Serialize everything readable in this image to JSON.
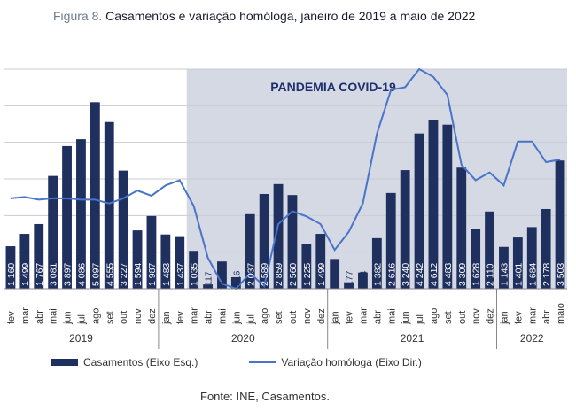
{
  "title": {
    "figure_label": "Figura 8.",
    "text": "Casamentos e variação homóloga, janeiro de 2019 a maio de 2022"
  },
  "colors": {
    "bars": "#1f2f5e",
    "line": "#4a74c9",
    "shade": "#d4d9e3",
    "annotation": "#1f2f6e"
  },
  "chart_data": {
    "type": "bar",
    "annotation": "PANDEMIA COVID-19",
    "categories": [
      "fev",
      "mar",
      "abr",
      "mai",
      "jun",
      "jul",
      "ago",
      "set",
      "out",
      "nov",
      "dez",
      "jan",
      "fev",
      "mar",
      "abr",
      "mai",
      "jun",
      "jul",
      "ago",
      "set",
      "out",
      "nov",
      "dez",
      "jan",
      "fev",
      "mar",
      "abr",
      "mai",
      "jun",
      "jul",
      "ago",
      "set",
      "out",
      "nov",
      "dez",
      "jan",
      "fev",
      "mar",
      "abr",
      "maio"
    ],
    "years": [
      {
        "label": "2019",
        "start": 0,
        "end": 10
      },
      {
        "label": "2020",
        "start": 11,
        "end": 22
      },
      {
        "label": "2021",
        "start": 23,
        "end": 34
      },
      {
        "label": "2022",
        "start": 35,
        "end": 39
      }
    ],
    "series": [
      {
        "name": "Casamentos (Eixo Esq.)",
        "type": "bar",
        "values": [
          1160,
          1499,
          1767,
          3081,
          3897,
          4086,
          5097,
          4555,
          3227,
          1594,
          1987,
          1483,
          1437,
          1035,
          117,
          745,
          316,
          2037,
          2589,
          2859,
          2560,
          1225,
          1499,
          814,
          177,
          444,
          1382,
          2616,
          3240,
          4242,
          4612,
          4483,
          3309,
          1628,
          2110,
          1143,
          1401,
          1684,
          2178,
          3503
        ],
        "labels": [
          "1 160",
          "1 499",
          "1 767",
          "3 081",
          "3 897",
          "4 086",
          "5 097",
          "4 555",
          "3 227",
          "1 594",
          "1 987",
          "1 483",
          "1 437",
          "1 035",
          "117",
          "745",
          "316",
          "2 037",
          "2 589",
          "2 859",
          "2 560",
          "1 225",
          "1 499",
          "814",
          "177",
          "444",
          "1 382",
          "2 616",
          "3 240",
          "4 242",
          "4 612",
          "4 483",
          "3 309",
          "1 628",
          "2 110",
          "1 143",
          "1 401",
          "1 684",
          "2 178",
          "3 503"
        ]
      },
      {
        "name": "Variação homóloga (Eixo Dir.)",
        "type": "line",
        "values": [
          0.5,
          0.55,
          0.45,
          0.5,
          0.5,
          0.45,
          0.45,
          0.3,
          0.5,
          0.8,
          0.6,
          1.0,
          1.2,
          0.2,
          -1.8,
          -2.8,
          -3.0,
          -2.4,
          -2.9,
          -0.5,
          0.0,
          -0.2,
          -0.5,
          -1.5,
          -0.8,
          0.3,
          3.0,
          4.7,
          4.8,
          5.5,
          5.2,
          4.5,
          1.8,
          1.2,
          1.5,
          1.0,
          2.7,
          2.7,
          1.9,
          2.0
        ]
      }
    ],
    "ylim_left": [
      0,
      6000
    ],
    "ylim_right": [
      -3,
      5.5
    ],
    "shaded_region": {
      "start": "mar 2020",
      "end": "maio 2022"
    }
  },
  "legend": {
    "bars": "Casamentos (Eixo Esq.)",
    "line": "Variação homóloga (Eixo Dir.)"
  },
  "source": "Fonte: INE, Casamentos."
}
